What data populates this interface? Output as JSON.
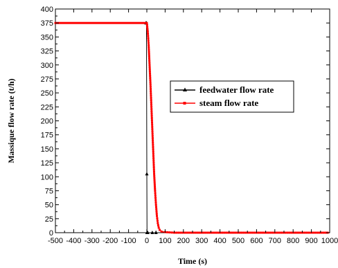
{
  "chart_data": {
    "type": "line",
    "xlabel": "Time (s)",
    "ylabel": "Massique flow rate (t/h)",
    "xlim": [
      -500,
      1000
    ],
    "ylim": [
      0,
      400
    ],
    "xticks": [
      -500,
      -400,
      -300,
      -200,
      -100,
      0,
      100,
      200,
      300,
      400,
      500,
      600,
      700,
      800,
      900,
      1000
    ],
    "yticks": [
      0,
      25,
      50,
      75,
      100,
      125,
      150,
      175,
      200,
      225,
      250,
      275,
      300,
      325,
      350,
      375,
      400
    ],
    "grid": false,
    "legend_position": "right",
    "series": [
      {
        "name": "feedwater flow rate",
        "color": "#000000",
        "marker": "triangle",
        "points": [
          [
            -500,
            375
          ],
          [
            -5,
            375
          ],
          [
            -2,
            375
          ],
          [
            0,
            105
          ],
          [
            1,
            0
          ],
          [
            5,
            0
          ],
          [
            30,
            0
          ],
          [
            50,
            0
          ],
          [
            1000,
            0
          ]
        ]
      },
      {
        "name": "steam flow rate",
        "color": "#ff0000",
        "marker": "square",
        "points": [
          [
            -500,
            375
          ],
          [
            0,
            375
          ],
          [
            5,
            360
          ],
          [
            10,
            335
          ],
          [
            15,
            300
          ],
          [
            20,
            265
          ],
          [
            25,
            225
          ],
          [
            30,
            185
          ],
          [
            35,
            145
          ],
          [
            40,
            105
          ],
          [
            45,
            75
          ],
          [
            50,
            50
          ],
          [
            55,
            30
          ],
          [
            60,
            17
          ],
          [
            65,
            9
          ],
          [
            70,
            5
          ],
          [
            80,
            2
          ],
          [
            100,
            1
          ],
          [
            150,
            0
          ],
          [
            1000,
            0
          ]
        ]
      }
    ]
  }
}
